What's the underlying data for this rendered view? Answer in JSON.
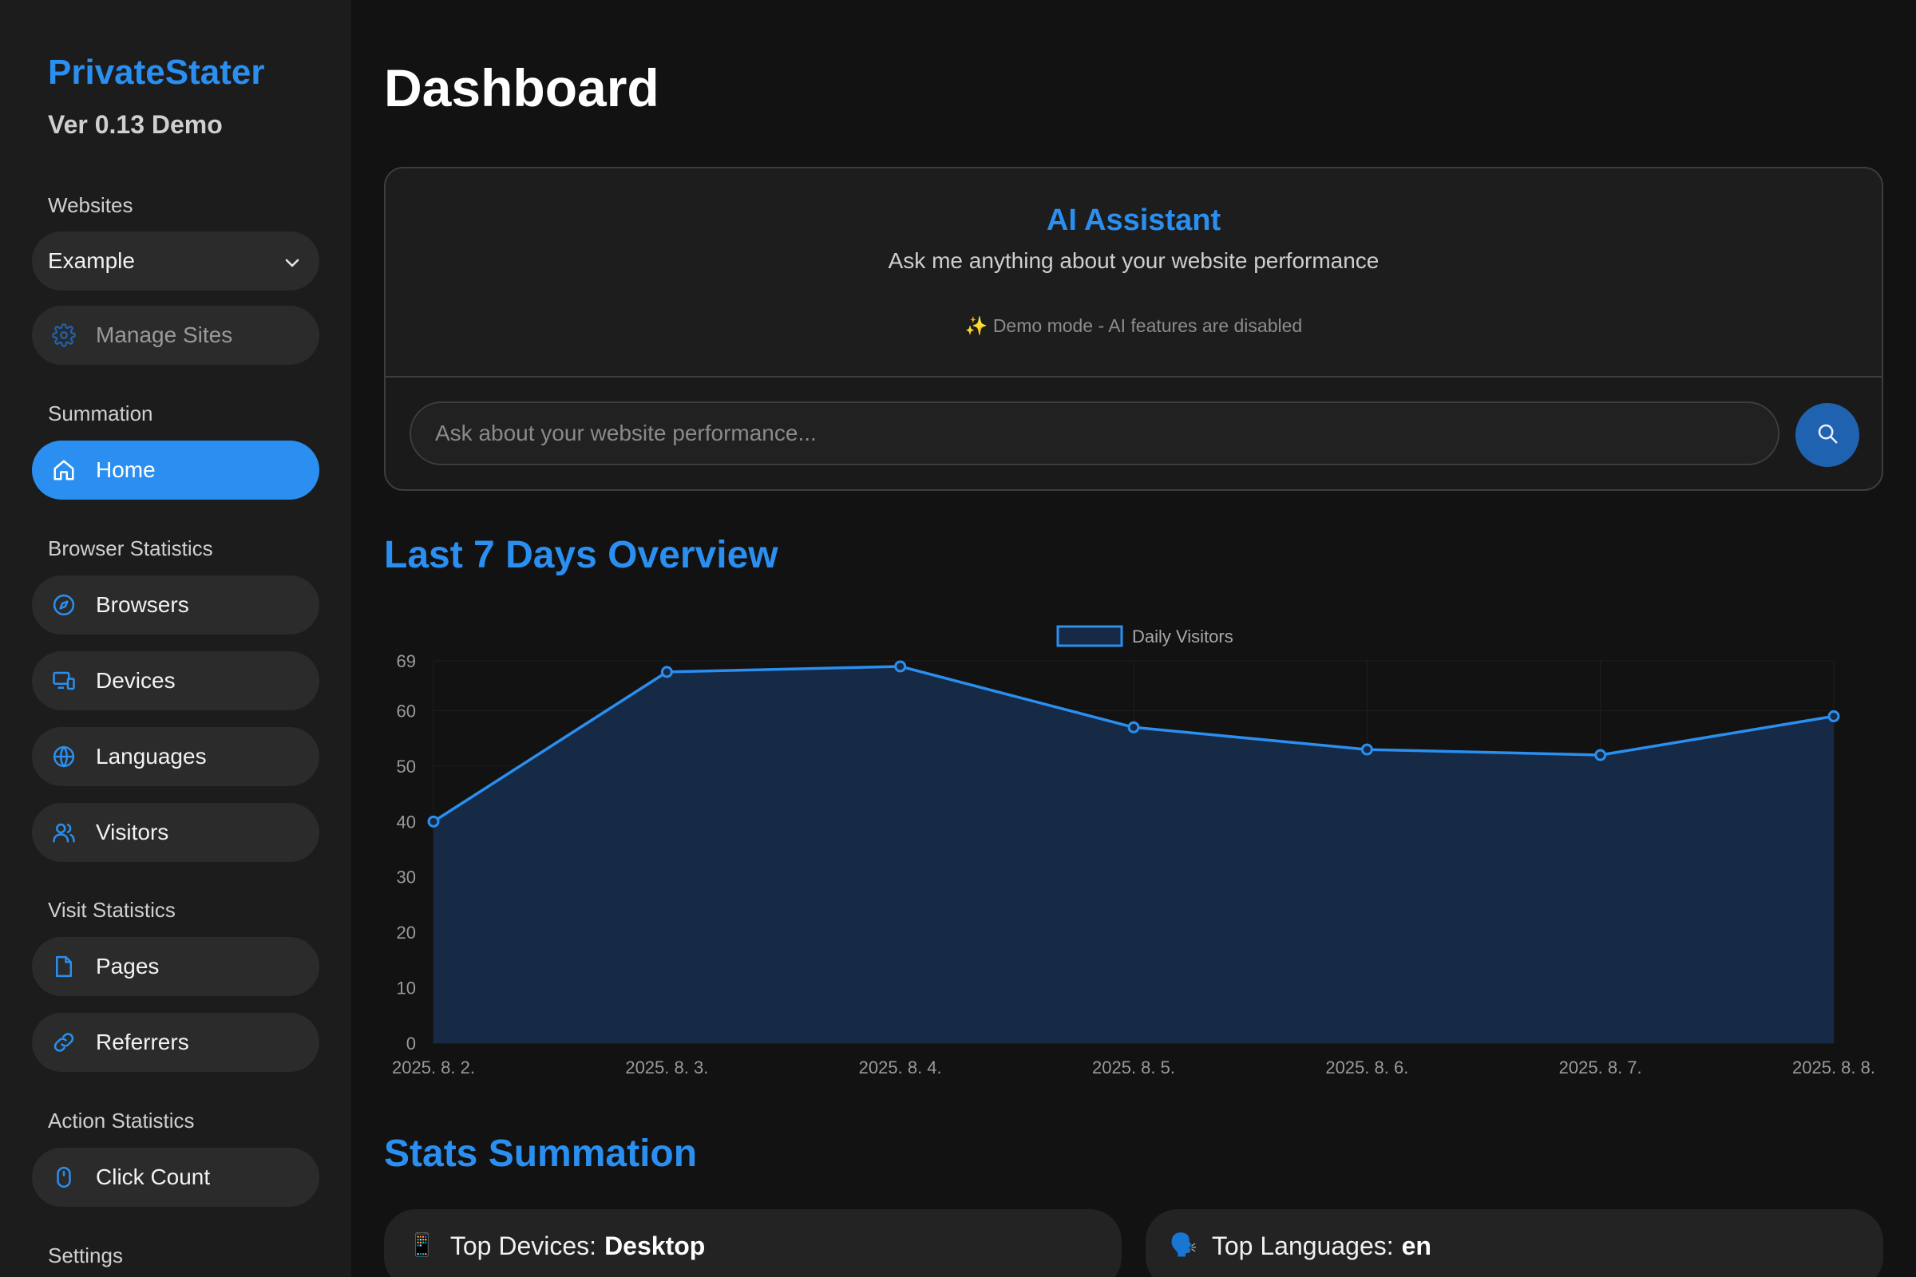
{
  "sidebar": {
    "brand": "PrivateStater",
    "version": "Ver 0.13 Demo",
    "websites_label": "Websites",
    "website_select": "Example",
    "manage_sites": "Manage Sites",
    "summation_label": "Summation",
    "home": "Home",
    "browser_stats_label": "Browser Statistics",
    "browsers": "Browsers",
    "devices": "Devices",
    "languages": "Languages",
    "visitors": "Visitors",
    "visit_stats_label": "Visit Statistics",
    "pages": "Pages",
    "referrers": "Referrers",
    "action_stats_label": "Action Statistics",
    "click_count": "Click Count",
    "settings_label": "Settings"
  },
  "main": {
    "title": "Dashboard",
    "ai": {
      "title": "AI Assistant",
      "subtitle": "Ask me anything about your website performance",
      "demo_note": "✨  Demo mode - AI features are disabled",
      "input_placeholder": "Ask about your website performance..."
    },
    "overview_heading": "Last 7 Days Overview",
    "stats_heading": "Stats Summation",
    "stats": {
      "top_devices_label": "Top Devices:",
      "top_devices_value": "Desktop",
      "top_languages_label": "Top Languages:",
      "top_languages_value": "en"
    }
  },
  "colors": {
    "accent": "#2a8ff0",
    "area_fill": "#172a45",
    "background": "#121212",
    "sidebar": "#1c1c1c"
  },
  "chart_data": {
    "type": "area",
    "x": [
      "2025. 8. 2.",
      "2025. 8. 3.",
      "2025. 8. 4.",
      "2025. 8. 5.",
      "2025. 8. 6.",
      "2025. 8. 7.",
      "2025. 8. 8."
    ],
    "series": [
      {
        "name": "Daily Visitors",
        "values": [
          40,
          67,
          68,
          57,
          53,
          52,
          59
        ]
      }
    ],
    "yticks": [
      0,
      10,
      20,
      30,
      40,
      50,
      60,
      69
    ],
    "ylim": [
      0,
      69
    ],
    "legend": "top-center",
    "grid": true
  }
}
